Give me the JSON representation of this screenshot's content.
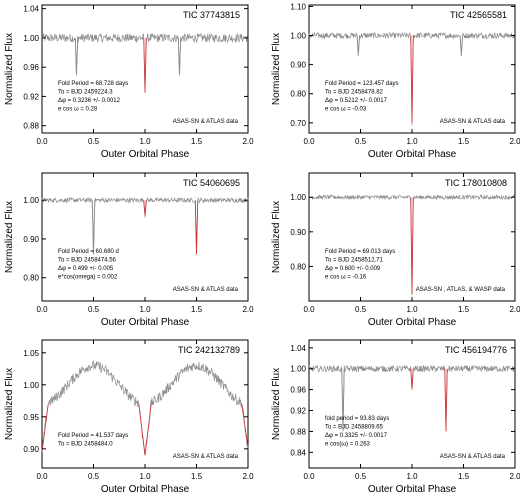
{
  "chart_data": [
    {
      "type": "line",
      "title": "TIC 37743815",
      "xlabel": "Outer Orbital Phase",
      "ylabel": "Normalized Flux",
      "xlim": [
        0,
        2
      ],
      "ylim": [
        0.87,
        1.045
      ],
      "xticks": [
        "0.0",
        "0.5",
        "1.0",
        "1.5",
        "2.0"
      ],
      "yticks": [
        "0.88",
        "0.92",
        "0.96",
        "1.00",
        "1.04"
      ],
      "ytick_values": [
        0.88,
        0.92,
        0.96,
        1.0,
        1.04
      ],
      "annotation": [
        "Fold Period = 68.728 days",
        "To = BJD 2459224.3",
        "Δφ = 0.3236 +/- 0.0012",
        "e cos ω = 0.28"
      ],
      "source": "ASAS-SN & ATLAS data",
      "noise": 0.006,
      "baseline": 1.0,
      "eclipses": [
        {
          "phase": 0.335,
          "min_flux": 0.949,
          "color": "data"
        },
        {
          "phase": 1.0,
          "min_flux": 0.925,
          "color": "model"
        },
        {
          "phase": 1.335,
          "min_flux": 0.949,
          "color": "data"
        }
      ]
    },
    {
      "type": "line",
      "title": "TIC 42565581",
      "xlabel": "Outer Orbital Phase",
      "ylabel": "Normalized Flux",
      "xlim": [
        0,
        2
      ],
      "ylim": [
        0.665,
        1.105
      ],
      "xticks": [
        "0.0",
        "0.5",
        "1.0",
        "1.5",
        "2.0"
      ],
      "yticks": [
        "0.70",
        "0.80",
        "0.90",
        "1.00",
        "1.10"
      ],
      "ytick_values": [
        0.7,
        0.8,
        0.9,
        1.0,
        1.1
      ],
      "annotation": [
        "Fold Period = 123.457 days",
        "To = BJD 2458478.82",
        "Δφ = 0.5212 +/- 0.0017",
        "e cos ω = -0.03"
      ],
      "source": "ASAS-SN & ATLAS data",
      "noise": 0.01,
      "baseline": 1.0,
      "eclipses": [
        {
          "phase": 0.479,
          "min_flux": 0.93,
          "color": "data"
        },
        {
          "phase": 1.0,
          "min_flux": 0.7,
          "color": "model"
        },
        {
          "phase": 1.479,
          "min_flux": 0.93,
          "color": "data"
        }
      ]
    },
    {
      "type": "line",
      "title": "TIC 54060695",
      "xlabel": "Outer Orbital Phase",
      "ylabel": "Normalized Flux",
      "xlim": [
        0,
        2
      ],
      "ylim": [
        0.74,
        1.07
      ],
      "xticks": [
        "0.0",
        "0.5",
        "1.0",
        "1.5",
        "2.0"
      ],
      "yticks": [
        "0.80",
        "0.90",
        "1.00"
      ],
      "ytick_values": [
        0.8,
        0.9,
        1.0
      ],
      "annotation": [
        "Fold Period = 60.680 d",
        "To = BJD 2458474.56",
        "Δφ = 0.499 +/- 0.005",
        "e*cos(omega) = 0.002"
      ],
      "source": "ASAS-SN & ATLAS data",
      "noise": 0.006,
      "baseline": 1.0,
      "eclipses": [
        {
          "phase": 0.5,
          "min_flux": 0.86,
          "color": "data"
        },
        {
          "phase": 1.0,
          "min_flux": 0.96,
          "color": "model"
        },
        {
          "phase": 1.5,
          "min_flux": 0.86,
          "color": "model"
        }
      ]
    },
    {
      "type": "line",
      "title": "TIC 178010808",
      "xlabel": "Outer Orbital Phase",
      "ylabel": "Normalized Flux",
      "xlim": [
        0,
        2
      ],
      "ylim": [
        0.7,
        1.07
      ],
      "xticks": [
        "0.0",
        "0.5",
        "1.0",
        "1.5",
        "2.0"
      ],
      "yticks": [
        "0.80",
        "0.90",
        "1.00"
      ],
      "ytick_values": [
        0.8,
        0.9,
        1.0
      ],
      "annotation": [
        "Fold Period = 69.013 days",
        "To = BJD 2458512.71",
        "Δφ = 0.600 +/- 0.009",
        "e cos ω = -0.16"
      ],
      "source": "ASAS-SN , ATLAS, & WASP data",
      "noise": 0.006,
      "baseline": 1.0,
      "eclipses": [
        {
          "phase": 1.0,
          "min_flux": 0.72,
          "color": "model"
        }
      ]
    },
    {
      "type": "line",
      "title": "TIC 242132789",
      "xlabel": "Outer Orbital Phase",
      "ylabel": "Normalized Flux",
      "xlim": [
        0,
        2
      ],
      "ylim": [
        0.87,
        1.07
      ],
      "xticks": [
        "0.0",
        "0.5",
        "1.0",
        "1.5",
        "2.0"
      ],
      "yticks": [
        "0.90",
        "0.95",
        "1.00",
        "1.05"
      ],
      "ytick_values": [
        0.9,
        0.95,
        1.0,
        1.05
      ],
      "annotation": [
        "Fold Period = 41.537 days",
        "To = BJD 2458484.0"
      ],
      "source": "ASAS-SN & ATLAS data",
      "noise": 0.008,
      "baseline": 1.0,
      "wave_amp": 0.03,
      "eclipses": [
        {
          "phase": 0.0,
          "min_flux": 0.895,
          "color": "model"
        },
        {
          "phase": 1.0,
          "min_flux": 0.89,
          "color": "model"
        },
        {
          "phase": 2.0,
          "min_flux": 0.9,
          "color": "model"
        }
      ]
    },
    {
      "type": "line",
      "title": "TIC 456194776",
      "xlabel": "Outer Orbital Phase",
      "ylabel": "Normalized Flux",
      "xlim": [
        0,
        2
      ],
      "ylim": [
        0.81,
        1.055
      ],
      "xticks": [
        "0.0",
        "0.5",
        "1.0",
        "1.5",
        "2.0"
      ],
      "yticks": [
        "0.84",
        "0.88",
        "0.92",
        "0.96",
        "1.00",
        "1.04"
      ],
      "ytick_values": [
        0.84,
        0.88,
        0.92,
        0.96,
        1.0,
        1.04
      ],
      "annotation": [
        "fold period = 93.83 days",
        "To = BJD 2458809.65",
        "Δφ = 0.3325 +/- 0.0017",
        "e cos(ω) = 0.263"
      ],
      "source": "ASAS-SN & ATLAS data",
      "noise": 0.006,
      "baseline": 1.0,
      "eclipses": [
        {
          "phase": 0.33,
          "min_flux": 0.88,
          "color": "data"
        },
        {
          "phase": 1.0,
          "min_flux": 0.96,
          "color": "model"
        },
        {
          "phase": 1.33,
          "min_flux": 0.88,
          "color": "model"
        }
      ]
    }
  ],
  "colors": {
    "data": "#8c8c8c",
    "model": "#d23a3a",
    "axis": "#000000"
  }
}
